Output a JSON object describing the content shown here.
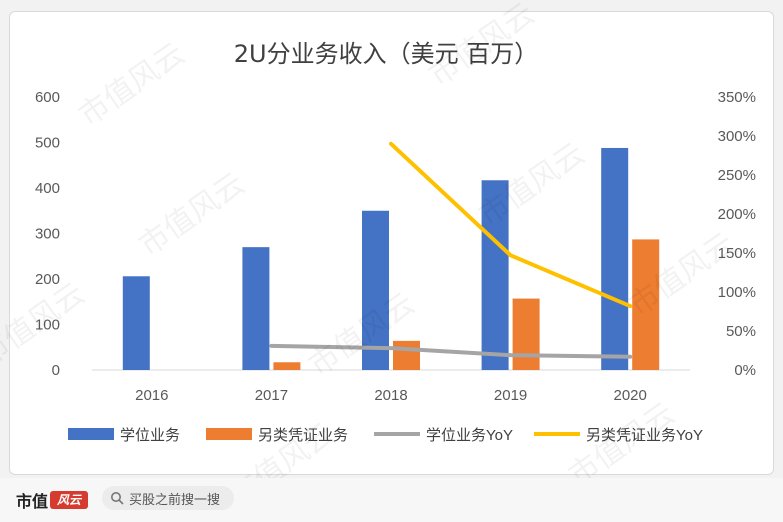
{
  "chart_data": {
    "type": "bar",
    "title": "2U分业务收入（美元 百万）",
    "categories": [
      "2016",
      "2017",
      "2018",
      "2019",
      "2020"
    ],
    "y_left": {
      "lim": [
        0,
        600
      ],
      "ticks": [
        "0",
        "100",
        "200",
        "300",
        "400",
        "500",
        "600"
      ]
    },
    "y_right": {
      "lim": [
        0,
        3.5
      ],
      "ticks": [
        "0%",
        "50%",
        "100%",
        "150%",
        "200%",
        "250%",
        "300%",
        "350%"
      ]
    },
    "bar_series": [
      {
        "name": "学位业务",
        "color": "#4472c4",
        "values": [
          206,
          270,
          350,
          417,
          488
        ]
      },
      {
        "name": "另类凭证业务",
        "color": "#ed7d31",
        "values": [
          null,
          17,
          64,
          157,
          287
        ]
      }
    ],
    "line_series": [
      {
        "name": "学位业务YoY",
        "color": "#a5a5a5",
        "values": [
          null,
          0.31,
          0.28,
          0.19,
          0.17
        ]
      },
      {
        "name": "另类凭证业务YoY",
        "color": "#ffc000",
        "values": [
          null,
          null,
          2.9,
          1.47,
          0.82
        ]
      }
    ],
    "legend_position": "bottom",
    "grid": false
  },
  "footer": {
    "brand_name": "市值",
    "brand_mark": "风云",
    "search_placeholder": "买股之前搜一搜"
  },
  "watermark_text": "市值风云"
}
